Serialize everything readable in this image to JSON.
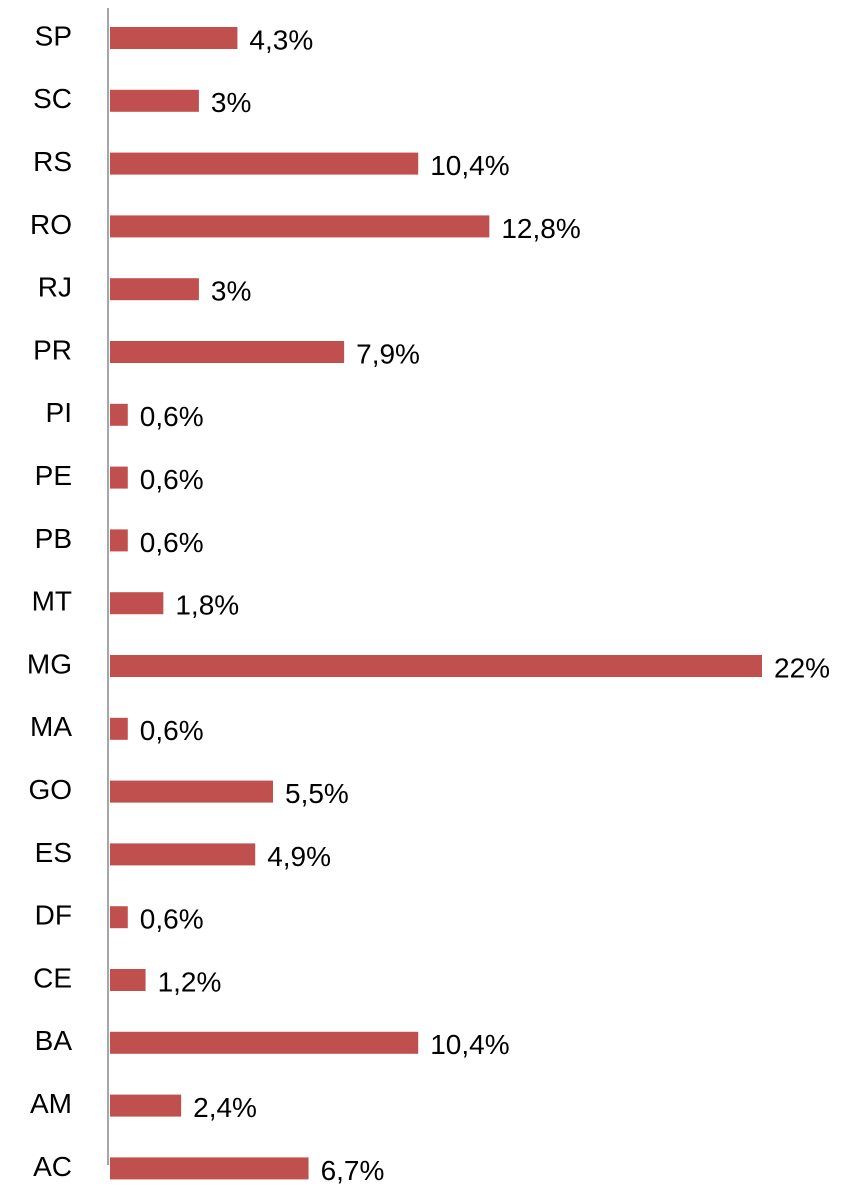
{
  "chart_data": {
    "type": "bar",
    "orientation": "horizontal",
    "categories": [
      "SP",
      "SC",
      "RS",
      "RO",
      "RJ",
      "PR",
      "PI",
      "PE",
      "PB",
      "MT",
      "MG",
      "MA",
      "GO",
      "ES",
      "DF",
      "CE",
      "BA",
      "AM",
      "AC"
    ],
    "values": [
      4.3,
      3,
      10.4,
      12.8,
      3,
      7.9,
      0.6,
      0.6,
      0.6,
      1.8,
      22,
      0.6,
      5.5,
      4.9,
      0.6,
      1.2,
      10.4,
      2.4,
      6.7
    ],
    "value_labels": [
      "4,3%",
      "3%",
      "10,4%",
      "12,8%",
      "3%",
      "7,9%",
      "0,6%",
      "0,6%",
      "0,6%",
      "1,8%",
      "22%",
      "0,6%",
      "5,5%",
      "4,9%",
      "0,6%",
      "1,2%",
      "10,4%",
      "2,4%",
      "6,7%"
    ],
    "color": "#c0504d"
  }
}
